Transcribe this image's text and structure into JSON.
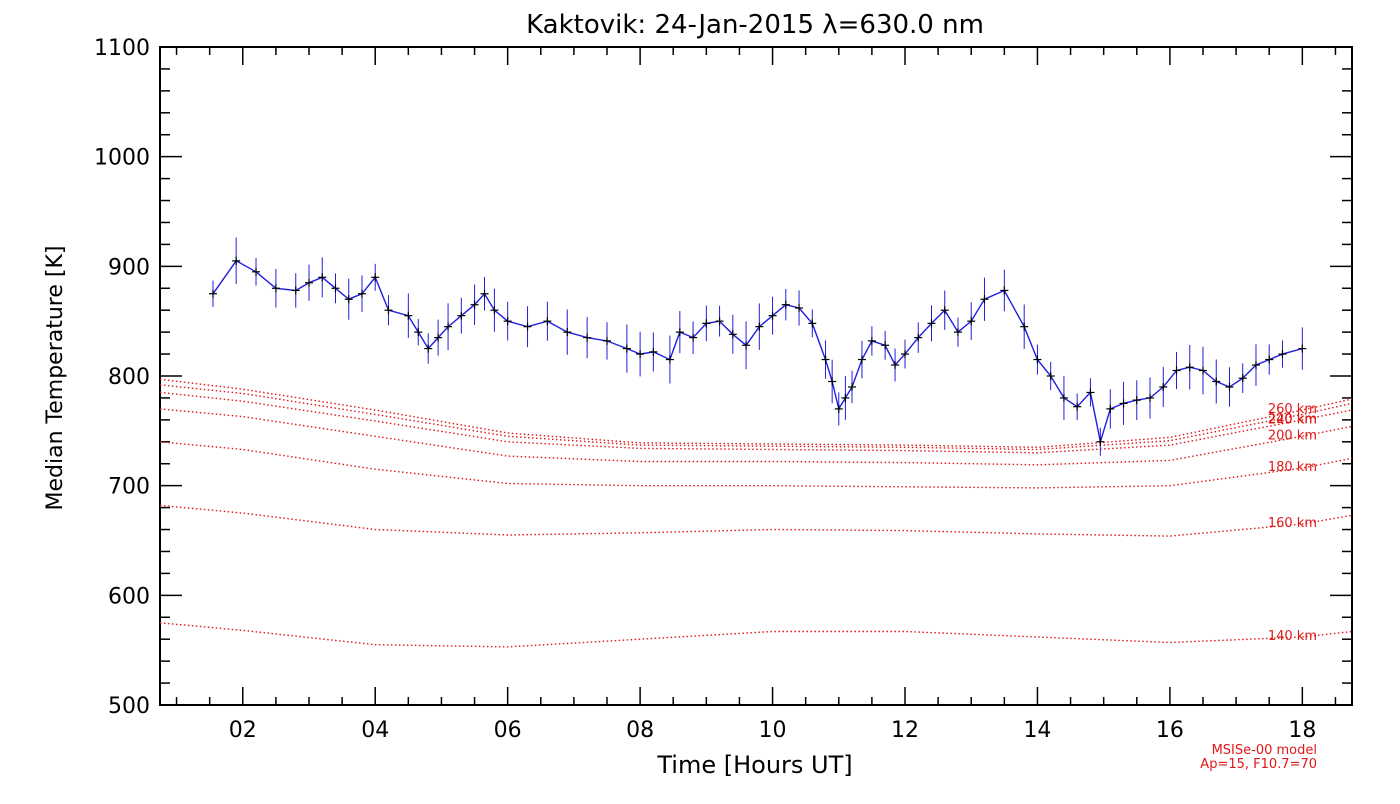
{
  "chart_data": {
    "type": "line",
    "title": "Kaktovik: 24-Jan-2015 λ=630.0 nm",
    "xlabel": "Time [Hours UT]",
    "ylabel": "Median Temperature [K]",
    "xlim": [
      0.75,
      18.75
    ],
    "ylim": [
      500,
      1100
    ],
    "xticks": [
      2,
      4,
      6,
      8,
      10,
      12,
      14,
      16,
      18
    ],
    "xtick_labels": [
      "02",
      "04",
      "06",
      "08",
      "10",
      "12",
      "14",
      "16",
      "18"
    ],
    "yticks": [
      500,
      600,
      700,
      800,
      900,
      1000,
      1100
    ],
    "ytick_labels": [
      "500",
      "600",
      "700",
      "800",
      "900",
      "1000",
      "1100"
    ],
    "grid": false,
    "colors": {
      "measurement": "#1f1fe0",
      "markers": "#000000",
      "model": "#e01818",
      "axes": "#000000"
    },
    "measurement": {
      "name": "Median Temperature",
      "x": [
        1.55,
        1.9,
        2.2,
        2.5,
        2.8,
        3.0,
        3.2,
        3.4,
        3.6,
        3.8,
        4.0,
        4.2,
        4.5,
        4.65,
        4.8,
        4.95,
        5.1,
        5.3,
        5.5,
        5.65,
        5.8,
        6.0,
        6.3,
        6.6,
        6.9,
        7.2,
        7.5,
        7.8,
        8.0,
        8.2,
        8.45,
        8.6,
        8.8,
        9.0,
        9.2,
        9.4,
        9.6,
        9.8,
        10.0,
        10.2,
        10.4,
        10.6,
        10.8,
        10.9,
        11.0,
        11.1,
        11.2,
        11.35,
        11.5,
        11.7,
        11.85,
        12.0,
        12.2,
        12.4,
        12.6,
        12.8,
        13.0,
        13.2,
        13.5,
        13.8,
        14.0,
        14.2,
        14.4,
        14.6,
        14.8,
        14.95,
        15.1,
        15.3,
        15.5,
        15.7,
        15.9,
        16.1,
        16.3,
        16.5,
        16.7,
        16.9,
        17.1,
        17.3,
        17.5,
        17.7,
        18.0
      ],
      "y": [
        875,
        905,
        895,
        880,
        878,
        885,
        890,
        880,
        870,
        875,
        890,
        860,
        855,
        840,
        825,
        835,
        845,
        855,
        865,
        875,
        860,
        850,
        845,
        850,
        840,
        835,
        832,
        825,
        820,
        822,
        815,
        840,
        835,
        848,
        850,
        838,
        828,
        845,
        855,
        865,
        862,
        848,
        815,
        795,
        770,
        780,
        790,
        815,
        832,
        828,
        810,
        820,
        835,
        848,
        860,
        840,
        850,
        870,
        878,
        845,
        815,
        800,
        780,
        772,
        785,
        740,
        770,
        775,
        778,
        780,
        790,
        805,
        808,
        805,
        795,
        790,
        798,
        810,
        815,
        820,
        825
      ]
    },
    "model": {
      "name": "MSISe-00 model",
      "params": "Ap=15, F10.7=70",
      "x": [
        0.75,
        2,
        4,
        6,
        8,
        10,
        12,
        14,
        16,
        18,
        18.75
      ],
      "series": [
        {
          "name": "140 km",
          "values": [
            575,
            568,
            555,
            553,
            560,
            567,
            567,
            562,
            557,
            562,
            567
          ]
        },
        {
          "name": "160 km",
          "values": [
            682,
            675,
            660,
            655,
            657,
            660,
            659,
            656,
            654,
            665,
            673
          ]
        },
        {
          "name": "180 km",
          "values": [
            740,
            733,
            715,
            702,
            700,
            700,
            699,
            698,
            700,
            716,
            725
          ]
        },
        {
          "name": "200 km",
          "values": [
            770,
            763,
            745,
            727,
            722,
            722,
            721,
            719,
            723,
            745,
            754
          ]
        },
        {
          "name": "220 km",
          "values": [
            785,
            777,
            759,
            740,
            734,
            733,
            732,
            730,
            737,
            760,
            769
          ]
        },
        {
          "name": "240 km",
          "values": [
            792,
            784,
            765,
            745,
            737,
            736,
            735,
            733,
            741,
            765,
            775
          ]
        },
        {
          "name": "260 km",
          "values": [
            797,
            788,
            769,
            748,
            739,
            738,
            737,
            735,
            744,
            769,
            779
          ]
        }
      ]
    },
    "annotations": [
      "MSISe-00 model",
      "Ap=15, F10.7=70"
    ]
  }
}
